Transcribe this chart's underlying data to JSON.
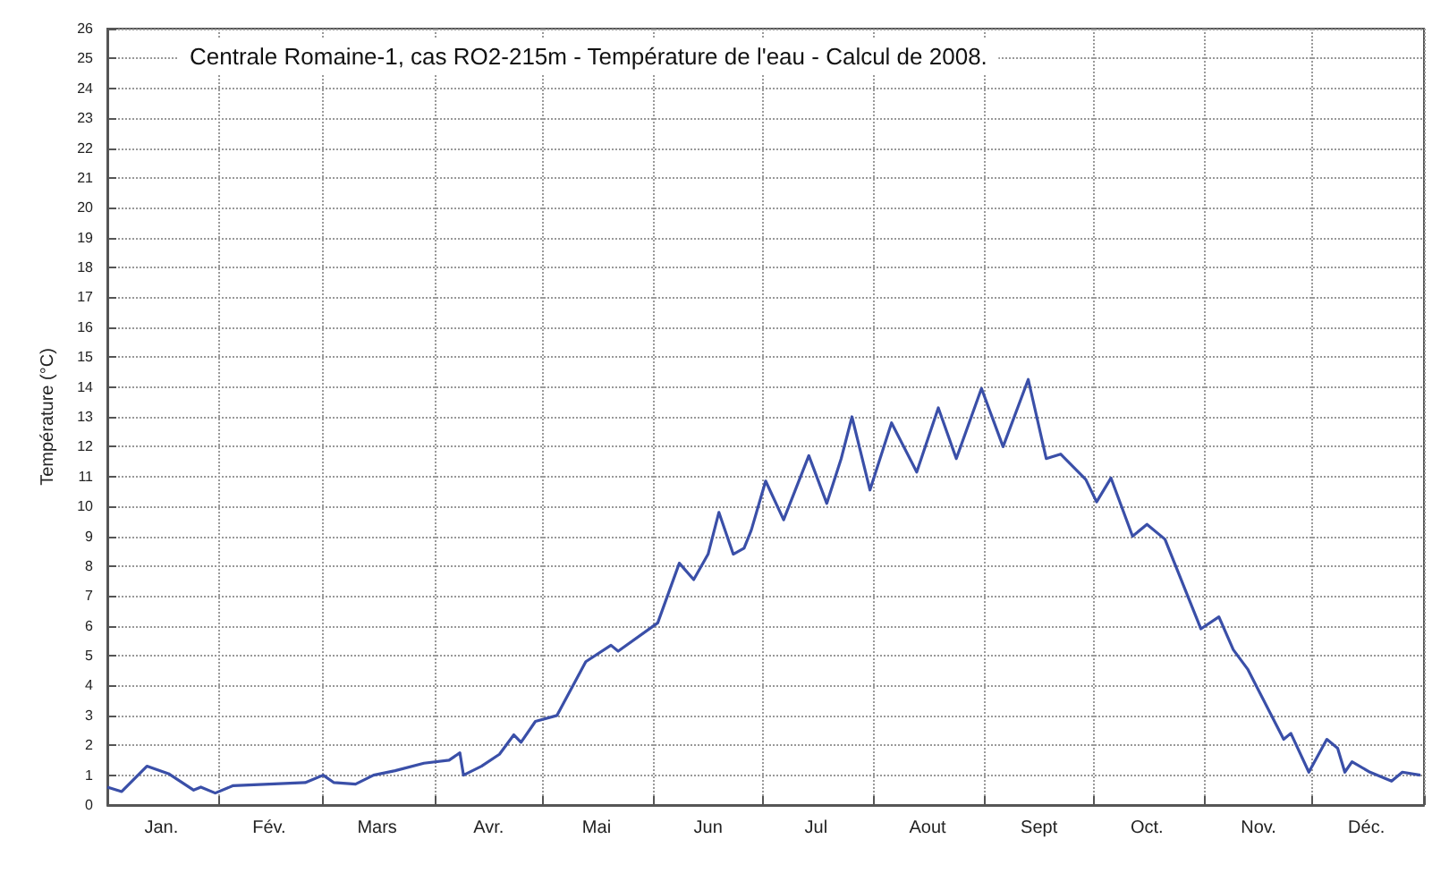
{
  "chart_data": {
    "type": "line",
    "title": "Centrale Romaine-1, cas RO2-215m - Température de l'eau - Calcul de 2008.",
    "ylabel": "Température (°C)",
    "x": [
      "2008-01-01",
      "2008-01-05",
      "2008-01-12",
      "2008-01-18",
      "2008-01-25",
      "2008-01-27",
      "2008-01-31",
      "2008-02-05",
      "2008-02-15",
      "2008-02-25",
      "2008-03-01",
      "2008-03-04",
      "2008-03-10",
      "2008-03-15",
      "2008-03-21",
      "2008-03-29",
      "2008-04-05",
      "2008-04-08",
      "2008-04-09",
      "2008-04-14",
      "2008-04-19",
      "2008-04-23",
      "2008-04-25",
      "2008-04-29",
      "2008-05-05",
      "2008-05-13",
      "2008-05-20",
      "2008-05-22",
      "2008-06-02",
      "2008-06-08",
      "2008-06-12",
      "2008-06-16",
      "2008-06-19",
      "2008-06-23",
      "2008-06-26",
      "2008-06-28",
      "2008-07-02",
      "2008-07-07",
      "2008-07-14",
      "2008-07-19",
      "2008-07-23",
      "2008-07-26",
      "2008-07-31",
      "2008-08-06",
      "2008-08-13",
      "2008-08-19",
      "2008-08-24",
      "2008-08-31",
      "2008-09-06",
      "2008-09-13",
      "2008-09-18",
      "2008-09-22",
      "2008-09-29",
      "2008-10-02",
      "2008-10-06",
      "2008-10-12",
      "2008-10-16",
      "2008-10-21",
      "2008-10-31",
      "2008-11-05",
      "2008-11-09",
      "2008-11-13",
      "2008-11-23",
      "2008-11-25",
      "2008-11-30",
      "2008-12-05",
      "2008-12-08",
      "2008-12-10",
      "2008-12-12",
      "2008-12-17",
      "2008-12-23",
      "2008-12-26",
      "2008-12-31"
    ],
    "series": [
      {
        "color": "#3a4fa8",
        "values": [
          0.6,
          0.45,
          1.3,
          1.05,
          0.5,
          0.6,
          0.4,
          0.65,
          0.7,
          0.75,
          1.0,
          0.75,
          0.7,
          1.0,
          1.15,
          1.4,
          1.5,
          1.75,
          1.0,
          1.3,
          1.7,
          2.35,
          2.1,
          2.8,
          3.0,
          4.8,
          5.35,
          5.15,
          6.1,
          8.1,
          7.55,
          8.4,
          9.8,
          8.4,
          8.6,
          9.2,
          10.85,
          9.55,
          11.7,
          10.1,
          11.6,
          13.0,
          10.55,
          12.8,
          11.15,
          13.3,
          11.6,
          13.95,
          12.0,
          14.25,
          11.6,
          11.75,
          10.9,
          10.15,
          10.95,
          9.0,
          9.4,
          8.9,
          5.9,
          6.3,
          5.2,
          4.55,
          2.2,
          2.4,
          1.1,
          2.2,
          1.9,
          1.1,
          1.45,
          1.1,
          0.8,
          1.1,
          1.0
        ]
      }
    ],
    "xlim": [
      "2008-01-01",
      "2009-01-01"
    ],
    "xticks": [
      {
        "value": "2008-01-01",
        "label": null
      },
      {
        "value": "2008-01-16",
        "label": "Jan."
      },
      {
        "value": "2008-02-01",
        "label": null
      },
      {
        "value": "2008-02-15",
        "label": "Fév."
      },
      {
        "value": "2008-03-01",
        "label": null
      },
      {
        "value": "2008-03-16",
        "label": "Mars"
      },
      {
        "value": "2008-04-01",
        "label": null
      },
      {
        "value": "2008-04-16",
        "label": "Avr."
      },
      {
        "value": "2008-05-01",
        "label": null
      },
      {
        "value": "2008-05-16",
        "label": "Mai"
      },
      {
        "value": "2008-06-01",
        "label": null
      },
      {
        "value": "2008-06-16",
        "label": "Jun"
      },
      {
        "value": "2008-07-01",
        "label": null
      },
      {
        "value": "2008-07-16",
        "label": "Jul"
      },
      {
        "value": "2008-08-01",
        "label": null
      },
      {
        "value": "2008-08-16",
        "label": "Aout"
      },
      {
        "value": "2008-09-01",
        "label": null
      },
      {
        "value": "2008-09-16",
        "label": "Sept"
      },
      {
        "value": "2008-10-01",
        "label": null
      },
      {
        "value": "2008-10-16",
        "label": "Oct."
      },
      {
        "value": "2008-11-01",
        "label": null
      },
      {
        "value": "2008-11-16",
        "label": "Nov."
      },
      {
        "value": "2008-12-01",
        "label": null
      },
      {
        "value": "2008-12-16",
        "label": "Déc."
      },
      {
        "value": "2009-01-01",
        "label": null
      }
    ],
    "ylim": [
      0,
      26
    ],
    "yticks": [
      0,
      1,
      2,
      3,
      4,
      5,
      6,
      7,
      8,
      9,
      10,
      11,
      12,
      13,
      14,
      15,
      16,
      17,
      18,
      19,
      20,
      21,
      22,
      23,
      24,
      25,
      26
    ],
    "grid": true,
    "marker": "none",
    "line_style": "solid"
  }
}
